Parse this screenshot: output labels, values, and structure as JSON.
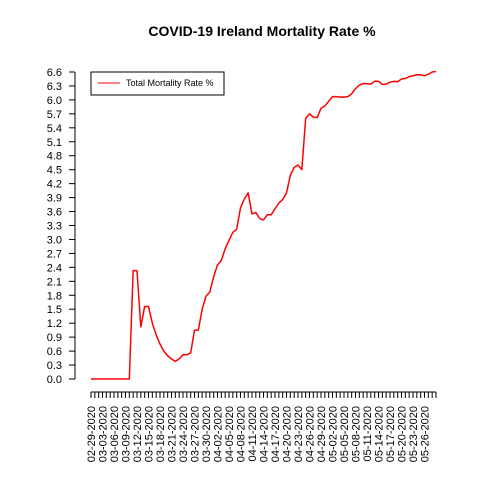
{
  "chart_data": {
    "type": "line",
    "title": "COVID-19 Ireland Mortality Rate %",
    "xlabel": "",
    "ylabel": "",
    "ylim": [
      0.0,
      6.6
    ],
    "y_ticks": [
      "0.0",
      "0.3",
      "0.6",
      "0.9",
      "1.2",
      "1.5",
      "1.8",
      "2.1",
      "2.4",
      "2.7",
      "3.0",
      "3.3",
      "3.6",
      "3.9",
      "4.2",
      "4.5",
      "4.8",
      "5.1",
      "5.4",
      "5.7",
      "6.0",
      "6.3",
      "6.6"
    ],
    "x_tick_labels": [
      "02-29-2020",
      "03-03-2020",
      "03-06-2020",
      "03-09-2020",
      "03-12-2020",
      "03-15-2020",
      "03-18-2020",
      "03-21-2020",
      "03-24-2020",
      "03-27-2020",
      "03-30-2020",
      "04-02-2020",
      "04-05-2020",
      "04-08-2020",
      "04-11-2020",
      "04-14-2020",
      "04-17-2020",
      "04-20-2020",
      "04-23-2020",
      "04-26-2020",
      "04-29-2020",
      "05-02-2020",
      "05-05-2020",
      "05-08-2020",
      "05-11-2020",
      "05-14-2020",
      "05-17-2020",
      "05-20-2020",
      "05-23-2020",
      "05-26-2020"
    ],
    "grid": false,
    "legend_position": "top-left",
    "color": "#ff0000",
    "series": [
      {
        "name": "Total Mortality Rate %",
        "start_date": "02-29-2020",
        "values": [
          0.0,
          0.0,
          0.0,
          0.0,
          0.0,
          0.0,
          0.0,
          0.0,
          0.0,
          0.0,
          0.0,
          2.33,
          2.33,
          1.12,
          1.56,
          1.56,
          1.2,
          0.95,
          0.75,
          0.6,
          0.5,
          0.43,
          0.38,
          0.43,
          0.52,
          0.52,
          0.56,
          1.05,
          1.05,
          1.5,
          1.78,
          1.87,
          2.2,
          2.45,
          2.55,
          2.8,
          2.98,
          3.15,
          3.22,
          3.68,
          3.87,
          4.0,
          3.55,
          3.58,
          3.45,
          3.42,
          3.53,
          3.53,
          3.66,
          3.78,
          3.86,
          4.0,
          4.38,
          4.55,
          4.6,
          4.5,
          5.6,
          5.7,
          5.63,
          5.62,
          5.82,
          5.87,
          5.97,
          6.07,
          6.07,
          6.06,
          6.06,
          6.07,
          6.13,
          6.24,
          6.32,
          6.35,
          6.35,
          6.34,
          6.4,
          6.4,
          6.33,
          6.34,
          6.38,
          6.4,
          6.39,
          6.45,
          6.46,
          6.5,
          6.52,
          6.54,
          6.54,
          6.52,
          6.55,
          6.6,
          6.61
        ]
      }
    ]
  }
}
